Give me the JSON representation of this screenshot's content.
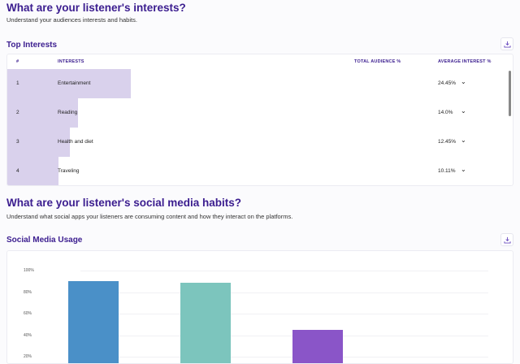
{
  "interests": {
    "title": "What are your listener's interests?",
    "subtitle": "Understand your audiences interests and habits.",
    "section_title": "Top Interests",
    "download_icon": "download-icon",
    "columns": [
      "#",
      "INTERESTS",
      "TOTAL AUDIENCE %",
      "AVERAGE INTEREST %"
    ],
    "bar_color": "#d9d1ec",
    "rows": [
      {
        "rank": "1",
        "name": "Entertainment",
        "avg": "24.45%",
        "avg_value": 24.45
      },
      {
        "rank": "2",
        "name": "Reading",
        "avg": "14.0%",
        "avg_value": 14.0
      },
      {
        "rank": "3",
        "name": "Health and diet",
        "avg": "12.45%",
        "avg_value": 12.45
      },
      {
        "rank": "4",
        "name": "Traveling",
        "avg": "10.11%",
        "avg_value": 10.11
      }
    ]
  },
  "social": {
    "title": "What are your listener's social media habits?",
    "subtitle": "Understand what social apps your listeners are consuming content and how they interact on the platforms.",
    "section_title": "Social Media Usage",
    "download_icon": "download-icon"
  },
  "chart_data": {
    "type": "bar",
    "yticks": [
      "100%",
      "80%",
      "60%",
      "40%",
      "20%"
    ],
    "ylim": [
      0,
      100
    ],
    "grid": true,
    "values": [
      90,
      89,
      45
    ],
    "colors": [
      "#4a90c8",
      "#7cc5bd",
      "#8a55c8"
    ]
  }
}
